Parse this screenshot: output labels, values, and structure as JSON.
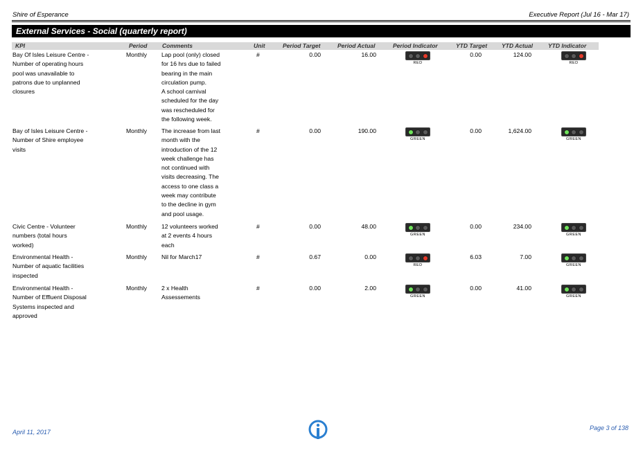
{
  "header": {
    "org": "Shire of Esperance",
    "report": "Executive Report (Jul 16 - Mar 17)"
  },
  "section_title": "External Services - Social (quarterly report)",
  "columns": {
    "kpi": "KPI",
    "period": "Period",
    "comments": "Comments",
    "unit": "Unit",
    "period_target": "Period Target",
    "period_actual": "Period Actual",
    "period_indicator": "Period Indicator",
    "ytd_target": "YTD Target",
    "ytd_actual": "YTD Actual",
    "ytd_indicator": "YTD Indicator"
  },
  "rows": [
    {
      "kpi": [
        "Bay Of Isles Leisure Centre -",
        "Number of operating hours",
        "pool was unavailable to",
        "patrons due to unplanned",
        "closures"
      ],
      "period": "Monthly",
      "comments": [
        "Lap pool (only) closed",
        "for 16 hrs due to failed",
        "bearing in the main",
        "circulation pump.",
        "A school carnival",
        "scheduled for the day",
        "was rescheduled for",
        "the following week."
      ],
      "unit": "#",
      "period_target": "0.00",
      "period_actual": "16.00",
      "period_indicator": "RED",
      "ytd_target": "0.00",
      "ytd_actual": "124.00",
      "ytd_indicator": "RED"
    },
    {
      "kpi": [
        "Bay of Isles Leisure Centre -",
        "Number of Shire employee",
        "visits"
      ],
      "period": "Monthly",
      "comments": [
        "The increase from last",
        "month with the",
        "introduction of the 12",
        "week challenge has",
        "not continued with",
        "visits decreasing. The",
        "access to one class a",
        "week may contribute",
        "to the decline in gym",
        "and pool usage."
      ],
      "unit": "#",
      "period_target": "0.00",
      "period_actual": "190.00",
      "period_indicator": "GREEN",
      "ytd_target": "0.00",
      "ytd_actual": "1,624.00",
      "ytd_indicator": "GREEN"
    },
    {
      "kpi": [
        "Civic Centre - Volunteer",
        "numbers (total hours",
        "worked)"
      ],
      "period": "Monthly",
      "comments": [
        "12 volunteers worked",
        "at 2 events 4 hours",
        "each"
      ],
      "unit": "#",
      "period_target": "0.00",
      "period_actual": "48.00",
      "period_indicator": "GREEN",
      "ytd_target": "0.00",
      "ytd_actual": "234.00",
      "ytd_indicator": "GREEN"
    },
    {
      "kpi": [
        "Environmental Health -",
        "Number of aquatic facilities",
        "inspected"
      ],
      "period": "Monthly",
      "comments": [
        "Nil for March17"
      ],
      "unit": "#",
      "period_target": "0.67",
      "period_actual": "0.00",
      "period_indicator": "RED",
      "ytd_target": "6.03",
      "ytd_actual": "7.00",
      "ytd_indicator": "GREEN"
    },
    {
      "kpi": [
        "Environmental Health -",
        "Number of Effluent Disposal",
        "Systems inspected and",
        "approved"
      ],
      "period": "Monthly",
      "comments": [
        "2 x Health",
        "Assessements"
      ],
      "unit": "#",
      "period_target": "0.00",
      "period_actual": "2.00",
      "period_indicator": "GREEN",
      "ytd_target": "0.00",
      "ytd_actual": "41.00",
      "ytd_indicator": "GREEN"
    }
  ],
  "colors": {
    "green": "#6fe35b",
    "red": "#e53a2a",
    "footer": "#2a5db0"
  },
  "footer": {
    "date": "April 11, 2017",
    "page": "Page 3 of 138",
    "logo_icon": "info-logo-icon"
  }
}
